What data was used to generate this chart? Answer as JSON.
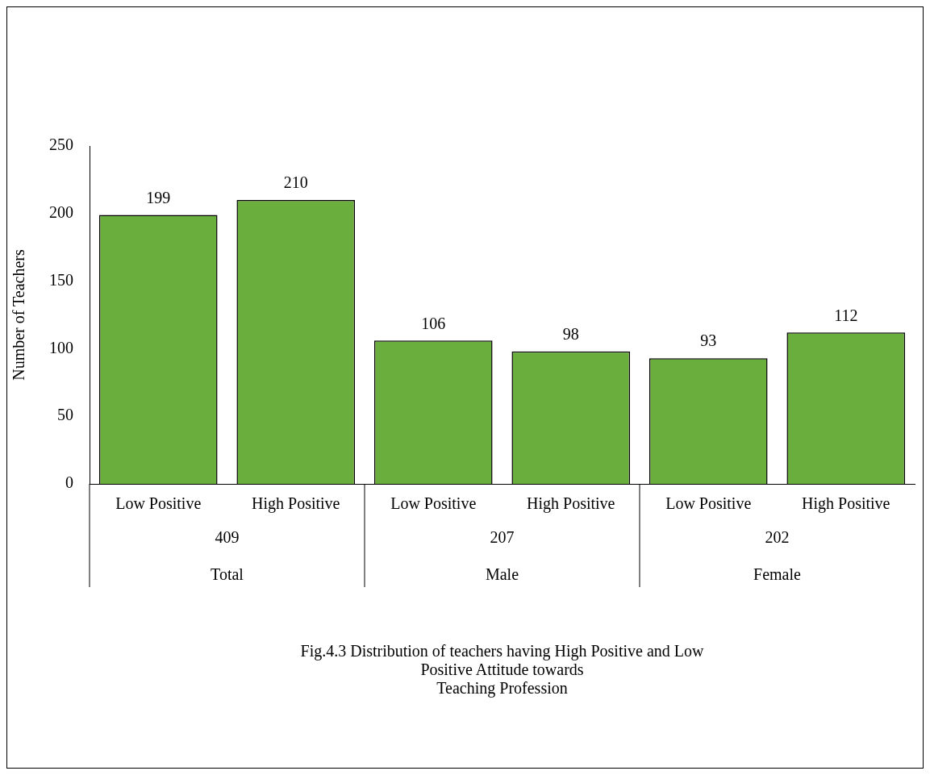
{
  "chart_data": {
    "type": "bar",
    "ylabel": "Number of Teachers",
    "categories": [
      "Low Positive",
      "High Positive",
      "Low Positive",
      "High Positive",
      "Low Positive",
      "High Positive"
    ],
    "values": [
      199,
      210,
      106,
      98,
      93,
      112
    ],
    "color": "#6aaf3d",
    "ylim": [
      0,
      250
    ],
    "yticks": [
      0,
      50,
      100,
      150,
      200,
      250
    ],
    "grid": false,
    "legend": false,
    "data_labels": true,
    "annotations": [
      "409",
      "Total",
      "207",
      "Male",
      "202",
      "Female",
      "Fig.4.3 Distribution of teachers having High Positive and Low Positive Attitude towards\nTeaching Profession"
    ]
  }
}
